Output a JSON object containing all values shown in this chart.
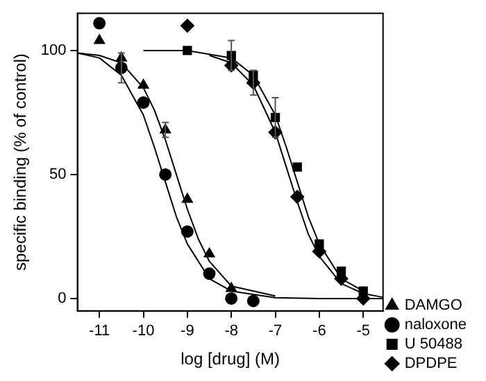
{
  "chart_data": {
    "type": "scatter",
    "xlabel": "log [drug] (M)",
    "ylabel": "specific binding (% of control)",
    "xlim": [
      -11.5,
      -4.55
    ],
    "ylim": [
      -5,
      115
    ],
    "xticks": [
      -11,
      -10,
      -9,
      -8,
      -7,
      -6,
      -5
    ],
    "yticks": [
      0,
      50,
      100
    ],
    "grid": false,
    "legend": "right",
    "series": [
      {
        "name": "DAMGO",
        "color": "#000000",
        "marker": "triangle",
        "x": [
          -11,
          -10.5,
          -10,
          -9.5,
          -9,
          -8.5,
          -8
        ],
        "values": [
          104,
          97,
          86,
          68,
          40,
          18,
          4
        ],
        "errors": [
          null,
          null,
          null,
          3,
          null,
          null,
          null
        ]
      },
      {
        "name": "naloxone",
        "color": "#000000",
        "marker": "circle",
        "x": [
          -11,
          -10.5,
          -10,
          -9.5,
          -9,
          -8.5,
          -8,
          -7.5
        ],
        "values": [
          111,
          93,
          79,
          50,
          27,
          10,
          0,
          -1
        ],
        "errors": [
          null,
          6,
          null,
          null,
          null,
          null,
          null,
          null
        ]
      },
      {
        "name": "U 50488",
        "color": "#000000",
        "marker": "square",
        "x": [
          -9,
          -8,
          -7.5,
          -7,
          -6.5,
          -6,
          -5.5,
          -5
        ],
        "values": [
          100,
          98,
          90,
          73,
          53,
          22,
          11,
          3
        ],
        "errors": [
          null,
          6,
          null,
          8,
          null,
          null,
          null,
          null
        ]
      },
      {
        "name": "DPDPE",
        "color": "#000000",
        "marker": "diamond",
        "x": [
          -9,
          -8,
          -7.5,
          -7,
          -6.5,
          -6,
          -5.5,
          -5
        ],
        "values": [
          110,
          94,
          87,
          67,
          41,
          19,
          8,
          0
        ],
        "errors": [
          null,
          null,
          5,
          null,
          null,
          null,
          null,
          null
        ]
      },
      {
        "type": "line",
        "color": "#000000",
        "marker": "none",
        "x": [
          -11.5,
          -11,
          -10.5,
          -10,
          -9.75,
          -9.5,
          -9.25,
          -9,
          -8.75,
          -8.5,
          -8,
          -7
        ],
        "values": [
          99,
          98,
          95,
          85,
          76,
          64,
          50,
          36,
          24,
          15,
          5,
          1
        ]
      },
      {
        "type": "line",
        "color": "#000000",
        "marker": "none",
        "x": [
          -11.5,
          -11,
          -10.5,
          -10,
          -9.75,
          -9.5,
          -9.25,
          -9,
          -8.5,
          -8,
          -7,
          -6,
          -4.55
        ],
        "values": [
          99,
          97,
          90,
          74,
          61,
          47,
          33,
          22,
          8,
          3,
          0.3,
          0,
          0
        ]
      },
      {
        "type": "line",
        "color": "#000000",
        "marker": "none",
        "x": [
          -10,
          -9,
          -8,
          -7.5,
          -7,
          -6.75,
          -6.5,
          -6.25,
          -6,
          -5.5,
          -5
        ],
        "values": [
          100,
          100,
          97,
          90,
          74,
          61,
          47,
          33,
          22,
          8,
          3
        ]
      },
      {
        "type": "line",
        "color": "#000000",
        "marker": "none",
        "x": [
          -8.5,
          -8,
          -7.5,
          -7,
          -6.75,
          -6.5,
          -6.25,
          -6,
          -5.5,
          -5,
          -4.55
        ],
        "values": [
          98,
          95,
          86,
          67,
          53,
          39,
          26,
          17,
          6,
          2,
          0.5
        ]
      }
    ]
  }
}
